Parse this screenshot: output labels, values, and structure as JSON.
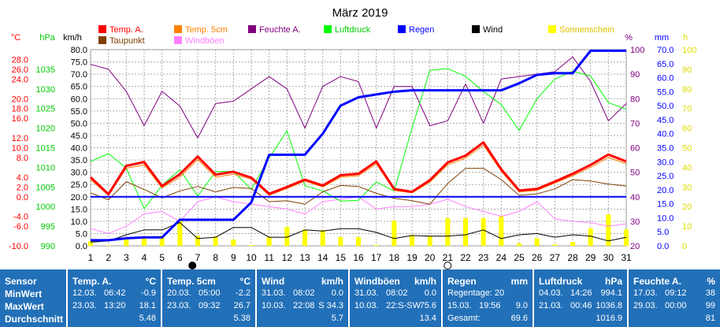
{
  "chart_data": {
    "type": "line",
    "title": "März 2019",
    "x": [
      1,
      2,
      3,
      4,
      5,
      6,
      7,
      8,
      9,
      10,
      11,
      12,
      13,
      14,
      15,
      16,
      17,
      18,
      19,
      20,
      21,
      22,
      23,
      24,
      25,
      26,
      27,
      28,
      29,
      30,
      31
    ],
    "legend": [
      {
        "key": "temp_a",
        "label": "Temp. A.",
        "color": "#ff0000"
      },
      {
        "key": "temp_5cm",
        "label": "Temp. 5cm",
        "color": "#ff8000"
      },
      {
        "key": "feuchte",
        "label": "Feuchte A.",
        "color": "#800080"
      },
      {
        "key": "luftdruck",
        "label": "Luftdruck",
        "color": "#00ff00"
      },
      {
        "key": "regen",
        "label": "Regen",
        "color": "#0000ff"
      },
      {
        "key": "wind",
        "label": "Wind",
        "color": "#000000"
      },
      {
        "key": "sonne",
        "label": "Sonnenschein",
        "color": "#ffff00"
      },
      {
        "key": "taupunkt",
        "label": "Taupunkt",
        "color": "#804000"
      },
      {
        "key": "windboeen",
        "label": "Windböen",
        "color": "#ff80ff"
      }
    ],
    "axes": {
      "temp_c": {
        "unit": "°C",
        "ticks": [
          28.0,
          26.0,
          24.0,
          20.0,
          18.0,
          16.0,
          12.0,
          10.0,
          8.0,
          4.0,
          2.0,
          0.0,
          -4.0,
          -6.0,
          -10.0
        ],
        "color": "#ff0000"
      },
      "hpa": {
        "unit": "hPa",
        "ticks": [
          1035,
          1030,
          1025,
          1020,
          1015,
          1010,
          1005,
          1000,
          995,
          990
        ],
        "color": "#00cc00"
      },
      "kmh": {
        "unit": "km/h",
        "ticks": [
          80.0,
          75.0,
          70.0,
          65.0,
          60.0,
          55.0,
          50.0,
          45.0,
          40.0,
          35.0,
          30.0,
          25.0,
          20.0,
          15.0,
          10.0,
          5.0,
          0.0
        ],
        "color": "#000000"
      },
      "pct": {
        "unit": "%",
        "ticks": [
          100,
          90,
          80,
          70,
          60,
          50,
          40,
          30,
          20
        ],
        "color": "#800080"
      },
      "mm": {
        "unit": "mm",
        "ticks": [
          70.0,
          65.0,
          60.0,
          55.0,
          50.0,
          45.0,
          40.0,
          35.0,
          30.0,
          25.0,
          20.0,
          15.0,
          10.0,
          5.0,
          0.0
        ],
        "color": "#0000ff"
      },
      "h": {
        "unit": "h",
        "ticks": [
          100,
          90,
          80,
          70,
          60,
          50,
          40,
          30,
          20,
          10,
          0
        ],
        "color": "#dddd00"
      }
    },
    "series": {
      "temp_a": [
        4.0,
        0.5,
        6.3,
        7.1,
        2.2,
        4.6,
        8.2,
        4.5,
        5.1,
        3.9,
        0.6,
        2.0,
        3.5,
        2.3,
        4.4,
        4.7,
        7.2,
        1.6,
        1.0,
        3.4,
        7.0,
        8.4,
        11.1,
        5.6,
        1.3,
        1.6,
        3.1,
        4.7,
        6.5,
        8.6,
        7.2
      ],
      "temp_5cm": [
        3.5,
        0.3,
        5.8,
        6.5,
        1.8,
        4.0,
        7.6,
        4.0,
        4.6,
        3.6,
        0.3,
        1.7,
        3.2,
        2.0,
        4.0,
        4.3,
        6.7,
        1.3,
        0.8,
        3.0,
        6.5,
        7.9,
        10.5,
        5.2,
        1.0,
        1.3,
        2.8,
        4.3,
        6.0,
        8.0,
        6.7
      ],
      "taupunkt": [
        0.8,
        -0.6,
        3.1,
        1.5,
        -0.2,
        1.2,
        2.1,
        1.0,
        1.9,
        1.7,
        -1.0,
        -0.8,
        -1.5,
        1.0,
        2.3,
        2.1,
        0.7,
        -0.3,
        -0.8,
        -1.5,
        2.7,
        5.8,
        5.8,
        3.5,
        0.3,
        0.6,
        1.6,
        3.5,
        3.2,
        2.6,
        2.2
      ],
      "windboeen": [
        7.0,
        5.0,
        8.0,
        13.0,
        14.0,
        10.0,
        18.0,
        20.0,
        18.0,
        17.0,
        16.0,
        15.0,
        13.0,
        18.0,
        19.0,
        20.0,
        15.0,
        16.0,
        16.0,
        17.0,
        19.0,
        16.0,
        14.0,
        12.0,
        14.0,
        18.0,
        11.0,
        10.0,
        9.5,
        8.0,
        9.0
      ],
      "feuchte": [
        94,
        92,
        83,
        69,
        83,
        77,
        64,
        78,
        79,
        84,
        89,
        84,
        68,
        85,
        89,
        87,
        68,
        85,
        85,
        69,
        71,
        86,
        70,
        88,
        89,
        90,
        91,
        97,
        87,
        71,
        78
      ],
      "luftdruck": [
        1011.5,
        1013.5,
        1009.8,
        999.5,
        1005.4,
        1009.4,
        1002.7,
        1008.9,
        1009.0,
        1004.4,
        1012.4,
        1019.3,
        1005.3,
        1004.0,
        1001.4,
        1001.6,
        1006.3,
        1004.0,
        1020.0,
        1034.7,
        1035.2,
        1033.2,
        1029.3,
        1026.0,
        1019.4,
        1027.5,
        1032.5,
        1034.5,
        1033.3,
        1026.5,
        1024.8
      ],
      "wind": [
        1.5,
        2.0,
        4.5,
        6.5,
        6.5,
        9.5,
        3.0,
        3.5,
        7.5,
        7.5,
        3.5,
        3.5,
        6.5,
        6.0,
        7.0,
        7.0,
        5.5,
        3.0,
        4.2,
        4.0,
        4.0,
        4.5,
        6.5,
        3.0,
        4.5,
        5.0,
        3.5,
        4.5,
        4.0,
        2.0,
        3.5
      ],
      "regen": [
        2.0,
        2.0,
        2.7,
        3.0,
        3.0,
        9.3,
        9.3,
        9.3,
        9.3,
        15.5,
        32.5,
        32.5,
        32.5,
        40.0,
        50.0,
        53.0,
        54.0,
        55.0,
        55.5,
        55.5,
        55.5,
        55.5,
        55.5,
        55.5,
        58.0,
        61.0,
        61.6,
        61.6,
        69.6,
        69.6,
        69.6
      ],
      "sonne": [
        1.8,
        0.2,
        2.5,
        3.0,
        4.0,
        10.0,
        4.0,
        3.8,
        2.5,
        0.3,
        3.5,
        7.5,
        6.5,
        6.2,
        3.5,
        3.5,
        0.3,
        10.0,
        4.3,
        4.0,
        11.0,
        11.0,
        11.0,
        12.0,
        1.0,
        3.0,
        0.5,
        1.5,
        7.0,
        12.5,
        6.5
      ]
    },
    "ranges": {
      "temp": [
        -10,
        30
      ],
      "hpa": [
        990,
        1040
      ],
      "kmh": [
        0,
        80
      ],
      "pct": [
        20,
        100
      ],
      "mm": [
        0,
        70
      ],
      "h": [
        0,
        100
      ]
    },
    "grid": true,
    "sun_axis_max_hours": 12.5,
    "moon_days": {
      "new_moon_day": 6.7,
      "full_moon_day": 21
    }
  },
  "stats": {
    "row_labels": [
      "Sensor",
      "MinWert",
      "MaxWert",
      "Durchschnitt"
    ],
    "panels": [
      {
        "title": "Temp. A.",
        "unit": "°C",
        "min": [
          "12.03.",
          "06:42",
          "-0.9"
        ],
        "max": [
          "23.03.",
          "13:20",
          "18.1"
        ],
        "avg": "5.48"
      },
      {
        "title": "Temp. 5cm",
        "unit": "°C",
        "min": [
          "20.03.",
          "05:00",
          "-2.2"
        ],
        "max": [
          "23.03.",
          "09:32",
          "26.7"
        ],
        "avg": "5.38"
      },
      {
        "title": "Wind",
        "unit": "km/h",
        "min": [
          "31.03.",
          "08:02",
          "0.0"
        ],
        "max": [
          "10.03.",
          "22:08",
          "S 34.3"
        ],
        "avg": "5.7"
      },
      {
        "title": "Windböen",
        "unit": "km/h",
        "min": [
          "31.03.",
          "08:02",
          "0.0"
        ],
        "max": [
          "10.03.",
          "22:S-SW",
          "75.6"
        ],
        "avg": "13.4"
      },
      {
        "title": "Regen",
        "unit": "mm",
        "min": [
          "Regentage: 20",
          "",
          ""
        ],
        "max": [
          "15.03.",
          "19:56",
          "9.0"
        ],
        "avg": "69.6",
        "avg_label": "Gesamt:"
      },
      {
        "title": "Luftdruck",
        "unit": "hPa",
        "min": [
          "04.03.",
          "14:26",
          "994.1"
        ],
        "max": [
          "21.03.",
          "00:46",
          "1036.8"
        ],
        "avg": "1016.9"
      },
      {
        "title": "Feuchte A.",
        "unit": "%",
        "min": [
          "17.03.",
          "09:12",
          "38"
        ],
        "max": [
          "29.03.",
          "00:00",
          "99"
        ],
        "avg": "81"
      }
    ]
  }
}
